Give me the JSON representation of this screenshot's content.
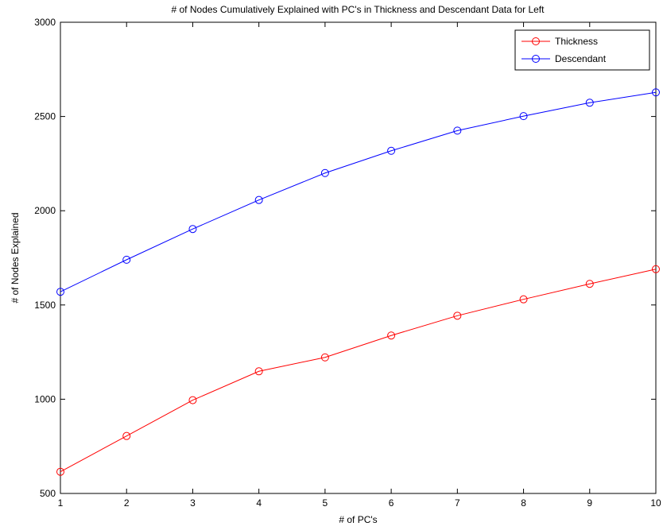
{
  "chart_data": {
    "type": "line",
    "title": "# of Nodes Cumulatively Explained with PC's in Thickness and Descendant Data for Left",
    "xlabel": "# of PC's",
    "ylabel": "# of Nodes Explained",
    "xlim": [
      1,
      10
    ],
    "ylim": [
      500,
      3000
    ],
    "xticks": [
      1,
      2,
      3,
      4,
      5,
      6,
      7,
      8,
      9,
      10
    ],
    "yticks": [
      500,
      1000,
      1500,
      2000,
      2500,
      3000
    ],
    "grid": false,
    "legend_position": "top-right",
    "x": [
      1,
      2,
      3,
      4,
      5,
      6,
      7,
      8,
      9,
      10
    ],
    "series": [
      {
        "name": "Thickness",
        "color": "#ff0000",
        "marker": "circle",
        "values": [
          615,
          805,
          995,
          1148,
          1222,
          1338,
          1443,
          1530,
          1612,
          1690
        ]
      },
      {
        "name": "Descendant",
        "color": "#0000ff",
        "marker": "circle",
        "values": [
          1570,
          1740,
          1903,
          2057,
          2200,
          2318,
          2425,
          2502,
          2573,
          2628
        ]
      }
    ]
  }
}
